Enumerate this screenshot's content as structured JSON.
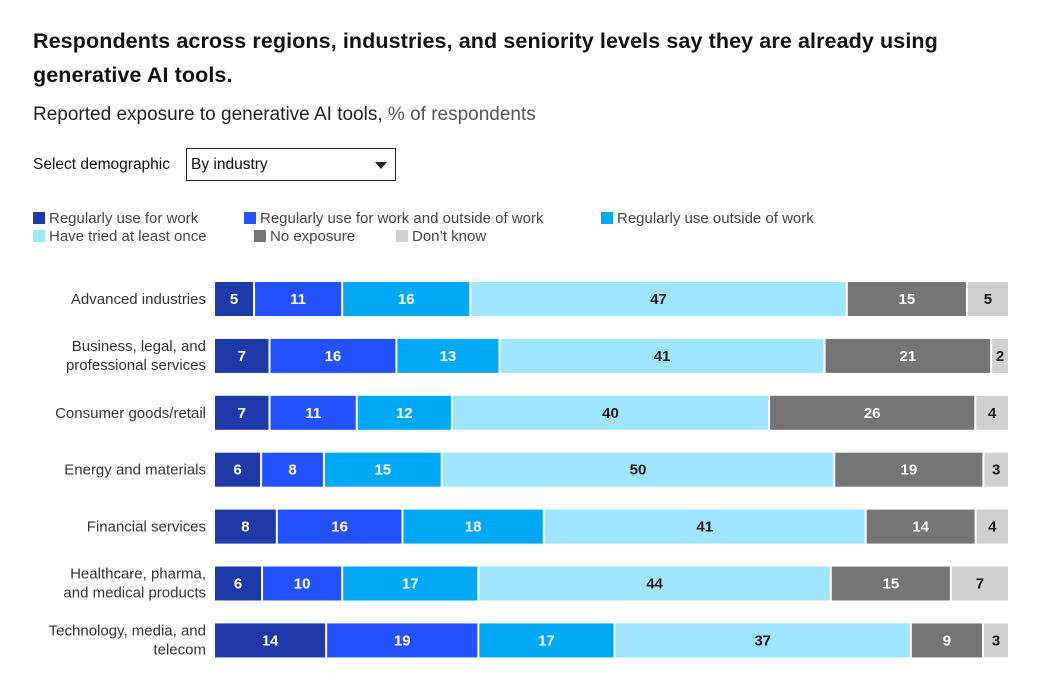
{
  "header": {
    "title": "Respondents across regions, industries, and seniority levels say they are already using generative AI tools.",
    "subtitle": "Reported exposure to generative AI tools,",
    "subtitle_unit": "% of respondents"
  },
  "filter": {
    "label": "Select demographic",
    "selected": "By industry"
  },
  "colors": {
    "regular_work": "#1f3aa8",
    "regular_both": "#2251ff",
    "regular_outside": "#00a9f4",
    "tried_once": "#9ee6ff",
    "no_exposure": "#757575",
    "dont_know": "#d0d0d0"
  },
  "chart_data": {
    "type": "bar",
    "orientation": "horizontal",
    "stacked": true,
    "title": "Reported exposure to generative AI tools",
    "ylabel": "% of respondents",
    "legend_position": "top-left",
    "categories": [
      "Advanced industries",
      "Business, legal, and professional services",
      "Consumer goods/retail",
      "Energy and materials",
      "Financial services",
      "Healthcare, pharma, and medical products",
      "Technology, media, and telecom"
    ],
    "category_lines": [
      [
        "Advanced industries"
      ],
      [
        "Business, legal, and",
        "professional services"
      ],
      [
        "Consumer goods/retail"
      ],
      [
        "Energy and materials"
      ],
      [
        "Financial services"
      ],
      [
        "Healthcare, pharma,",
        "and medical products"
      ],
      [
        "Technology, media, and",
        "telecom"
      ]
    ],
    "series": [
      {
        "name": "Regularly use for work",
        "color_key": "regular_work",
        "values": [
          5,
          7,
          7,
          6,
          8,
          6,
          14
        ]
      },
      {
        "name": "Regularly use for work and outside of work",
        "color_key": "regular_both",
        "values": [
          11,
          16,
          11,
          8,
          16,
          10,
          19
        ]
      },
      {
        "name": "Regularly use outside of work",
        "color_key": "regular_outside",
        "values": [
          16,
          13,
          12,
          15,
          18,
          17,
          17
        ]
      },
      {
        "name": "Have tried at least once",
        "color_key": "tried_once",
        "values": [
          47,
          41,
          40,
          50,
          41,
          44,
          37
        ]
      },
      {
        "name": "No exposure",
        "color_key": "no_exposure",
        "values": [
          15,
          21,
          26,
          19,
          14,
          15,
          9
        ]
      },
      {
        "name": "Don’t know",
        "color_key": "dont_know",
        "values": [
          5,
          2,
          4,
          3,
          4,
          7,
          3
        ]
      }
    ]
  }
}
